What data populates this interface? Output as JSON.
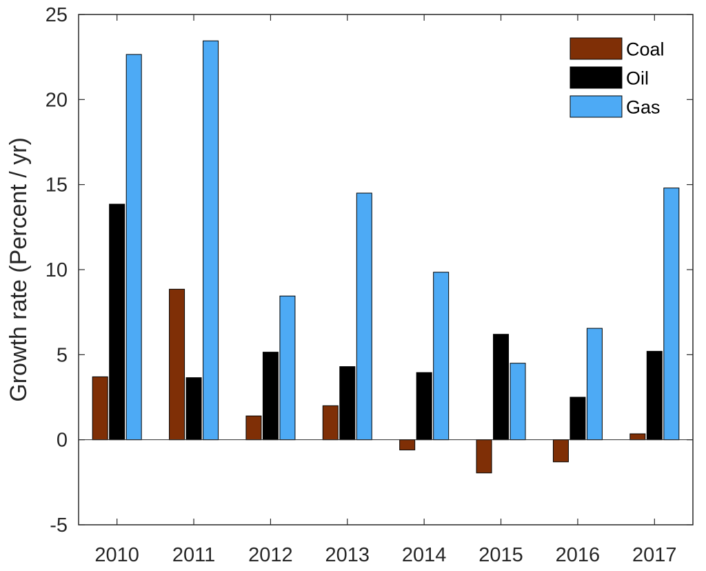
{
  "chart_data": {
    "type": "bar",
    "title": "",
    "xlabel": "",
    "ylabel": "Growth rate (Percent / yr)",
    "categories": [
      "2010",
      "2011",
      "2012",
      "2013",
      "2014",
      "2015",
      "2016",
      "2017"
    ],
    "ylim": [
      -5,
      25
    ],
    "yticks": [
      -5,
      0,
      5,
      10,
      15,
      20,
      25
    ],
    "grid": false,
    "legend_position": "top-right",
    "series": [
      {
        "name": "Coal",
        "color": "#7f2f06",
        "values": [
          3.7,
          8.85,
          1.4,
          2.0,
          -0.6,
          -1.95,
          -1.3,
          0.35
        ]
      },
      {
        "name": "Oil",
        "color": "#000000",
        "values": [
          13.85,
          3.65,
          5.15,
          4.3,
          3.95,
          6.2,
          2.5,
          5.2
        ]
      },
      {
        "name": "Gas",
        "color": "#4daaf5",
        "values": [
          22.65,
          23.45,
          8.45,
          14.5,
          9.85,
          4.5,
          6.55,
          14.8
        ]
      }
    ]
  }
}
